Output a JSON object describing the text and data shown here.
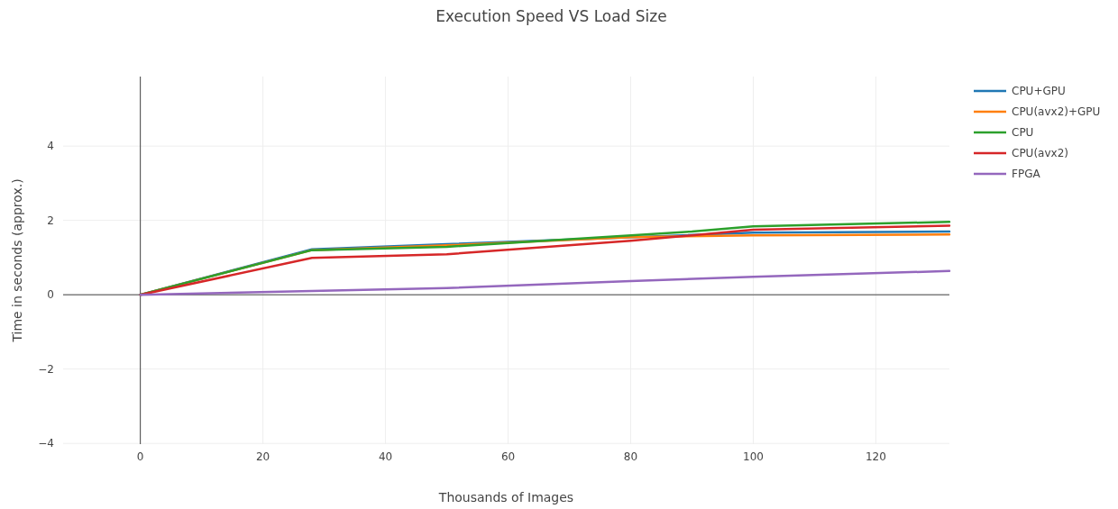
{
  "chart_data": {
    "type": "line",
    "title": "Execution Speed VS Load Size",
    "xlabel": "Thousands of Images",
    "ylabel": "Time in seconds (approx.)",
    "xlim": [
      -12.6,
      132
    ],
    "ylim": [
      -4.02,
      5.87
    ],
    "xticks": [
      0,
      20,
      40,
      60,
      80,
      100,
      120
    ],
    "yticks": [
      {
        "value": -4,
        "label": "−4"
      },
      {
        "value": -2,
        "label": "−2"
      },
      0,
      2,
      4
    ],
    "grid": true,
    "legend": "top right",
    "marker": "none",
    "line_style": "solid",
    "series": [
      {
        "name": "CPU+GPU",
        "color": "#1f77b4",
        "x": [
          0,
          28,
          50,
          100,
          132
        ],
        "values": [
          0,
          1.22,
          1.36,
          1.67,
          1.7
        ]
      },
      {
        "name": "CPU(avx2)+GPU",
        "color": "#ff7f0e",
        "x": [
          0,
          28,
          50,
          80,
          100,
          132
        ],
        "values": [
          0,
          1.2,
          1.33,
          1.55,
          1.6,
          1.62
        ]
      },
      {
        "name": "CPU",
        "color": "#2ca02c",
        "x": [
          0,
          28,
          50,
          90,
          100,
          132
        ],
        "values": [
          0,
          1.2,
          1.29,
          1.7,
          1.84,
          1.96
        ]
      },
      {
        "name": "CPU(avx2)",
        "color": "#d62728",
        "x": [
          0,
          28,
          50,
          80,
          100,
          132
        ],
        "values": [
          0,
          0.99,
          1.09,
          1.45,
          1.75,
          1.86
        ]
      },
      {
        "name": "FPGA",
        "color": "#9467bd",
        "x": [
          0,
          28,
          50,
          80,
          100,
          132
        ],
        "values": [
          0,
          0.1,
          0.18,
          0.37,
          0.48,
          0.64
        ]
      }
    ]
  }
}
